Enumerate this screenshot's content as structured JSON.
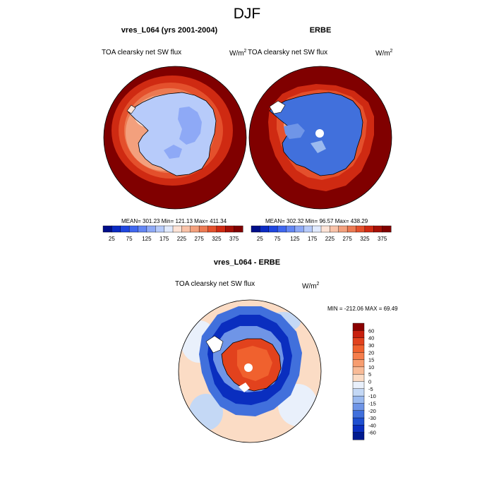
{
  "figure": {
    "title": "DJF",
    "left_panel": {
      "title": "vres_L064 (yrs 2001-2004)",
      "variable": "TOA clearsky net SW flux",
      "units_base": "W/m",
      "units_exp": "2",
      "stats": "MEAN= 301.23  Min= 121.13  Max= 411.34"
    },
    "right_panel": {
      "title": "ERBE",
      "variable": "TOA clearsky net SW flux",
      "units_base": "W/m",
      "units_exp": "2",
      "stats": "MEAN= 302.32  Min=  96.57  Max= 438.29"
    },
    "diff_panel": {
      "title": "vres_L064 - ERBE",
      "variable": "TOA clearsky net SW flux",
      "units_base": "W/m",
      "units_exp": "2",
      "stats": "MIN = -212.06 MAX =  69.49"
    }
  },
  "chart_data": [
    {
      "type": "heatmap",
      "title": "vres_L064 (yrs 2001-2004)",
      "subtitle": "TOA clearsky net SW flux",
      "units": "W/m2",
      "projection": "south polar stereographic",
      "stats": {
        "mean": 301.23,
        "min": 121.13,
        "max": 411.34
      },
      "colorbar": {
        "levels": [
          25,
          50,
          75,
          100,
          125,
          150,
          175,
          200,
          225,
          250,
          275,
          300,
          325,
          350,
          375
        ],
        "tick_labels": [
          "25",
          "75",
          "125",
          "175",
          "225",
          "275",
          "325",
          "375"
        ],
        "colors": [
          "#000e8a",
          "#0b2bc3",
          "#1f46e0",
          "#3f67ef",
          "#6487f3",
          "#8ea9f6",
          "#b7cbfa",
          "#e1eafd",
          "#fde3d6",
          "#f8c2a8",
          "#f3a07d",
          "#ec7a52",
          "#e4502c",
          "#cf2a12",
          "#a50f05",
          "#800000"
        ],
        "orientation": "horizontal"
      }
    },
    {
      "type": "heatmap",
      "title": "ERBE",
      "subtitle": "TOA clearsky net SW flux",
      "units": "W/m2",
      "projection": "south polar stereographic",
      "stats": {
        "mean": 302.32,
        "min": 96.57,
        "max": 438.29
      },
      "colorbar": {
        "levels": [
          25,
          50,
          75,
          100,
          125,
          150,
          175,
          200,
          225,
          250,
          275,
          300,
          325,
          350,
          375
        ],
        "tick_labels": [
          "25",
          "75",
          "125",
          "175",
          "225",
          "275",
          "325",
          "375"
        ],
        "colors": [
          "#000e8a",
          "#0b2bc3",
          "#1f46e0",
          "#3f67ef",
          "#6487f3",
          "#8ea9f6",
          "#b7cbfa",
          "#e1eafd",
          "#fde3d6",
          "#f8c2a8",
          "#f3a07d",
          "#ec7a52",
          "#e4502c",
          "#cf2a12",
          "#a50f05",
          "#800000"
        ],
        "orientation": "horizontal"
      }
    },
    {
      "type": "heatmap",
      "title": "vres_L064 - ERBE",
      "subtitle": "TOA clearsky net SW flux",
      "units": "W/m2",
      "projection": "south polar stereographic",
      "stats": {
        "min": -212.06,
        "max": 69.49
      },
      "colorbar": {
        "levels": [
          -60,
          -40,
          -30,
          -20,
          -15,
          -10,
          -5,
          0,
          5,
          10,
          15,
          20,
          30,
          40,
          60
        ],
        "tick_labels": [
          "60",
          "40",
          "30",
          "20",
          "15",
          "10",
          "5",
          "0",
          "-5",
          "-10",
          "-15",
          "-20",
          "-30",
          "-40",
          "-60"
        ],
        "colors": [
          "#8b0000",
          "#c8200e",
          "#e2421d",
          "#f0612e",
          "#f57e4c",
          "#f79d70",
          "#f8bb97",
          "#fbdcc5",
          "#e9f0fb",
          "#c4d8f5",
          "#9bbaef",
          "#6f95e7",
          "#4170dc",
          "#1f4fd0",
          "#0a2ebf",
          "#001a8f"
        ],
        "orientation": "vertical"
      }
    }
  ]
}
